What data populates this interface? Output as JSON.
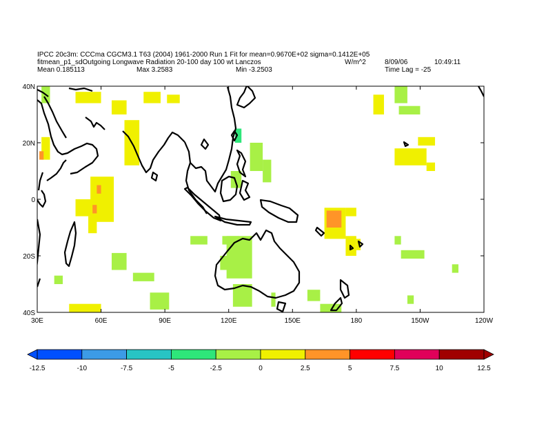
{
  "header": {
    "line1": "IPCC 20c3m: CCCma CGCM3.1 T63 (2004) 1961-2000 Run 1 Fit for mean=0.9670E+02  sigma=0.1412E+05",
    "line2": "fitmean_p1_sdOutgoing Longwave Radiation 20-100 day 100 wt Lanczos",
    "units": "W/m^2",
    "date": "8/09/06",
    "time": "10:49:11",
    "mean": "Mean 0.185113",
    "max": "Max 3.2583",
    "min": "Min -3.2503",
    "lag": "Time Lag = -25"
  },
  "map": {
    "lon_ticks": [
      "30E",
      "60E",
      "90E",
      "120E",
      "150E",
      "180",
      "150W",
      "120W"
    ],
    "lat_ticks": [
      "40N",
      "20N",
      "0",
      "20S",
      "40S"
    ],
    "lon_range": [
      30,
      240
    ],
    "lat_range": [
      -40,
      40
    ],
    "fill_regions": [
      {
        "lon": [
          32,
          36
        ],
        "lat": [
          34,
          40
        ],
        "level": "c-25"
      },
      {
        "lon": [
          32,
          36
        ],
        "lat": [
          14,
          22
        ],
        "level": "c0"
      },
      {
        "lon": [
          31,
          33
        ],
        "lat": [
          14,
          17
        ],
        "level": "c25"
      },
      {
        "lon": [
          48,
          60
        ],
        "lat": [
          34,
          38
        ],
        "level": "c0"
      },
      {
        "lon": [
          65,
          72
        ],
        "lat": [
          30,
          35
        ],
        "level": "c0"
      },
      {
        "lon": [
          80,
          88
        ],
        "lat": [
          34,
          38
        ],
        "level": "c0"
      },
      {
        "lon": [
          71,
          78
        ],
        "lat": [
          12,
          28
        ],
        "level": "c0"
      },
      {
        "lon": [
          91,
          97
        ],
        "lat": [
          34,
          37
        ],
        "level": "c0"
      },
      {
        "lon": [
          55,
          66
        ],
        "lat": [
          -8,
          8
        ],
        "level": "c0"
      },
      {
        "lon": [
          48,
          56
        ],
        "lat": [
          -6,
          0
        ],
        "level": "c0"
      },
      {
        "lon": [
          54,
          58
        ],
        "lat": [
          -12,
          -6
        ],
        "level": "c0"
      },
      {
        "lon": [
          58,
          60
        ],
        "lat": [
          2,
          5
        ],
        "level": "c25"
      },
      {
        "lon": [
          56,
          58
        ],
        "lat": [
          -5,
          -2
        ],
        "level": "c25"
      },
      {
        "lon": [
          38,
          42
        ],
        "lat": [
          -30,
          -27
        ],
        "level": "c-25"
      },
      {
        "lon": [
          45,
          60
        ],
        "lat": [
          -40,
          -37
        ],
        "level": "c0"
      },
      {
        "lon": [
          65,
          72
        ],
        "lat": [
          -25,
          -19
        ],
        "level": "c-25"
      },
      {
        "lon": [
          75,
          85
        ],
        "lat": [
          -29,
          -26
        ],
        "level": "c-25"
      },
      {
        "lon": [
          83,
          92
        ],
        "lat": [
          -39,
          -33
        ],
        "level": "c-25"
      },
      {
        "lon": [
          102,
          110
        ],
        "lat": [
          -16,
          -13
        ],
        "level": "c-25"
      },
      {
        "lon": [
          117,
          125
        ],
        "lat": [
          -16,
          -13
        ],
        "level": "c-25"
      },
      {
        "lon": [
          130,
          136
        ],
        "lat": [
          10,
          20
        ],
        "level": "c-25"
      },
      {
        "lon": [
          136,
          140
        ],
        "lat": [
          6,
          14
        ],
        "level": "c-25"
      },
      {
        "lon": [
          121,
          126
        ],
        "lat": [
          4,
          10
        ],
        "level": "c-25"
      },
      {
        "lon": [
          123,
          126
        ],
        "lat": [
          20,
          25
        ],
        "level": "c-5"
      },
      {
        "lon": [
          119,
          131
        ],
        "lat": [
          -28,
          -13
        ],
        "level": "c-25"
      },
      {
        "lon": [
          122,
          131
        ],
        "lat": [
          -38,
          -30
        ],
        "level": "c-25"
      },
      {
        "lon": [
          116,
          121
        ],
        "lat": [
          -25,
          -20
        ],
        "level": "c-25"
      },
      {
        "lon": [
          140,
          142
        ],
        "lat": [
          -38,
          -33
        ],
        "level": "c-25"
      },
      {
        "lon": [
          157,
          163
        ],
        "lat": [
          -36,
          -32
        ],
        "level": "c-25"
      },
      {
        "lon": [
          163,
          173
        ],
        "lat": [
          -40,
          -37
        ],
        "level": "c-25"
      },
      {
        "lon": [
          165,
          175
        ],
        "lat": [
          -14,
          -3
        ],
        "level": "c0"
      },
      {
        "lon": [
          166,
          173
        ],
        "lat": [
          -10,
          -4
        ],
        "level": "c25"
      },
      {
        "lon": [
          175,
          180
        ],
        "lat": [
          -20,
          -13
        ],
        "level": "c0"
      },
      {
        "lon": [
          175,
          180
        ],
        "lat": [
          -6,
          -3
        ],
        "level": "c0"
      },
      {
        "lon": [
          180,
          182
        ],
        "lat": [
          -18,
          -14
        ],
        "level": "c0"
      },
      {
        "lon": [
          198,
          204
        ],
        "lat": [
          34,
          40
        ],
        "level": "c-25"
      },
      {
        "lon": [
          200,
          210
        ],
        "lat": [
          30,
          33
        ],
        "level": "c-25"
      },
      {
        "lon": [
          188,
          193
        ],
        "lat": [
          30,
          37
        ],
        "level": "c0"
      },
      {
        "lon": [
          209,
          217
        ],
        "lat": [
          19,
          22
        ],
        "level": "c0"
      },
      {
        "lon": [
          198,
          213
        ],
        "lat": [
          12,
          18
        ],
        "level": "c0"
      },
      {
        "lon": [
          213,
          217
        ],
        "lat": [
          10,
          13
        ],
        "level": "c0"
      },
      {
        "lon": [
          201,
          212
        ],
        "lat": [
          -21,
          -18
        ],
        "level": "c-25"
      },
      {
        "lon": [
          198,
          201
        ],
        "lat": [
          -16,
          -13
        ],
        "level": "c-25"
      },
      {
        "lon": [
          225,
          228
        ],
        "lat": [
          -26,
          -23
        ],
        "level": "c-25"
      },
      {
        "lon": [
          204,
          207
        ],
        "lat": [
          -37,
          -34
        ],
        "level": "c-25"
      }
    ]
  },
  "colorbar": {
    "labels": [
      "-12.5",
      "-10",
      "-7.5",
      "-5",
      "-2.5",
      "0",
      "2.5",
      "5",
      "7.5",
      "10",
      "12.5"
    ],
    "colors": [
      "#0050ff",
      "#3c9be6",
      "#27c4c4",
      "#2ee67a",
      "#a8f046",
      "#f0f000",
      "#ff9428",
      "#ff0000",
      "#e0005a",
      "#a00000"
    ]
  }
}
